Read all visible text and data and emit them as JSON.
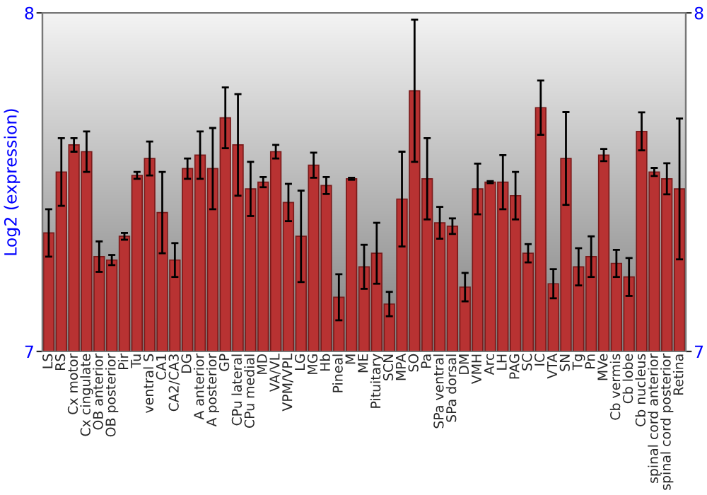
{
  "chart_data": {
    "type": "bar",
    "ylabel": "Log2 (expression)",
    "categories": [
      "LS",
      "RS",
      "Cx motor",
      "Cx cingulate",
      "OB anterior",
      "OB posterior",
      "Pir",
      "Tu",
      "ventral S",
      "CA1",
      "CA2/CA3",
      "DG",
      "A anterior",
      "A posterior",
      "GP",
      "CPu lateral",
      "CPu medial",
      "MD",
      "VA/VL",
      "VPM/VPL",
      "LG",
      "MG",
      "Hb",
      "Pineal",
      "M",
      "ME",
      "Pituitary",
      "SCN",
      "MPA",
      "SO",
      "Pa",
      "SPa ventral",
      "SPa dorsal",
      "DM",
      "VMH",
      "Arc",
      "LH",
      "PAG",
      "SC",
      "IC",
      "VTA",
      "SN",
      "Tg",
      "Pn",
      "MVe",
      "Cb vermis",
      "Cb lobe",
      "Cb nucleus",
      "spinal cord anterior",
      "spinal cord posterior",
      "Retina"
    ],
    "values": [
      7.35,
      7.53,
      7.61,
      7.59,
      7.28,
      7.27,
      7.34,
      7.52,
      7.57,
      7.41,
      7.27,
      7.54,
      7.58,
      7.54,
      7.69,
      7.61,
      7.48,
      7.5,
      7.59,
      7.44,
      7.34,
      7.55,
      7.49,
      7.16,
      7.51,
      7.25,
      7.29,
      7.14,
      7.45,
      7.77,
      7.51,
      7.38,
      7.37,
      7.19,
      7.48,
      7.5,
      7.5,
      7.46,
      7.29,
      7.72,
      7.2,
      7.57,
      7.25,
      7.28,
      7.58,
      7.26,
      7.22,
      7.65,
      7.53,
      7.51,
      7.48
    ],
    "errors": [
      0.07,
      0.1,
      0.02,
      0.06,
      0.045,
      0.015,
      0.01,
      0.01,
      0.05,
      0.12,
      0.05,
      0.03,
      0.07,
      0.12,
      0.09,
      0.15,
      0.08,
      0.015,
      0.02,
      0.055,
      0.135,
      0.037,
      0.025,
      0.068,
      0.003,
      0.065,
      0.09,
      0.036,
      0.14,
      0.21,
      0.12,
      0.047,
      0.023,
      0.042,
      0.075,
      0.003,
      0.08,
      0.07,
      0.027,
      0.08,
      0.043,
      0.137,
      0.055,
      0.06,
      0.018,
      0.04,
      0.056,
      0.056,
      0.012,
      0.046,
      0.208
    ],
    "color": "#b83232",
    "ylim": [
      7,
      8
    ],
    "yticks": [
      7,
      8
    ],
    "y2lim": [
      7,
      8
    ],
    "y2ticks": [
      7,
      8
    ],
    "grid": false,
    "legend": false
  }
}
